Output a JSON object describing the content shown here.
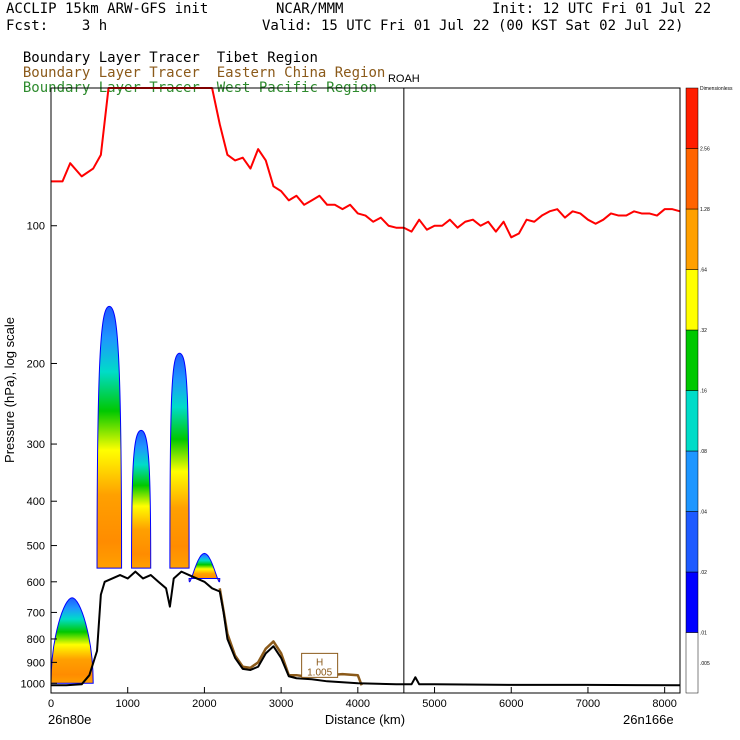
{
  "header": {
    "model": "ACCLIP 15km ARW-GFS init",
    "org": "NCAR/MMM",
    "init": "Init: 12 UTC Fri 01 Jul 22",
    "fcst": "Fcst:    3 h",
    "valid": "Valid: 15 UTC Fri 01 Jul 22 (00 KST Sat 02 Jul 22)"
  },
  "legend_lines": [
    {
      "name": "Boundary Layer Tracer",
      "region": "Tibet Region",
      "color": "#000000"
    },
    {
      "name": "Boundary Layer Tracer",
      "region": "Eastern China Region",
      "color": "#8b5a1a"
    },
    {
      "name": "Boundary Layer Tracer",
      "region": "West Pacific Region",
      "color": "#2e8b2e"
    }
  ],
  "marker": {
    "label": "ROAH",
    "distance_km": 4600
  },
  "hlabel": {
    "letter": "H",
    "value": "1.005"
  },
  "xaxis": {
    "left_label": "26n80e",
    "right_label": "26n166e",
    "label": "Distance (km)"
  },
  "colorbar": {
    "levels": [
      ".005",
      ".01",
      ".02",
      ".04",
      ".08",
      ".16",
      ".32",
      ".64",
      "1.28",
      "2.56",
      "Dimensionless"
    ],
    "colors": [
      "#ffffff",
      "#0000ff",
      "#1e5aff",
      "#1e96ff",
      "#00dcc8",
      "#00c800",
      "#ffff00",
      "#ffa000",
      "#ff6400",
      "#ff1e00"
    ]
  },
  "chart_data": {
    "type": "area",
    "title": "",
    "xlabel": "Distance (km)",
    "ylabel": "Pressure (hPa), log scale",
    "xlim": [
      0,
      8200
    ],
    "ylim": [
      1050,
      50
    ],
    "yscale": "log",
    "xticks": [
      0,
      1000,
      2000,
      3000,
      4000,
      5000,
      6000,
      7000,
      8000
    ],
    "yticks": [
      100,
      200,
      300,
      400,
      500,
      600,
      700,
      800,
      900,
      1000
    ],
    "tropopause_line": {
      "color": "#ff0000",
      "x": [
        0,
        150,
        250,
        400,
        550,
        650,
        750,
        900,
        1100,
        1300,
        1500,
        1600,
        1700,
        1800,
        1900,
        2000,
        2100,
        2200,
        2300,
        2400,
        2500,
        2600,
        2700,
        2800,
        2900,
        3000,
        3100,
        3200,
        3300,
        3400,
        3500,
        3600,
        3700,
        3800,
        3900,
        4000,
        4100,
        4200,
        4300,
        4400,
        4500,
        4600,
        4700,
        4800,
        4900,
        5000,
        5100,
        5200,
        5300,
        5400,
        5500,
        5600,
        5700,
        5800,
        5900,
        6000,
        6100,
        6200,
        6300,
        6400,
        6500,
        6600,
        6700,
        6800,
        6900,
        7000,
        7100,
        7200,
        7300,
        7400,
        7500,
        7600,
        7700,
        7800,
        7900,
        8000,
        8100,
        8200
      ],
      "y": [
        80,
        80,
        73,
        78,
        75,
        70,
        50,
        50,
        50,
        50,
        50,
        50,
        50,
        50,
        50,
        50,
        50,
        60,
        70,
        72,
        71,
        75,
        68,
        72,
        82,
        84,
        88,
        86,
        90,
        88,
        86,
        90,
        90,
        92,
        90,
        94,
        95,
        98,
        96,
        100,
        101,
        101,
        103,
        97,
        102,
        100,
        100,
        97,
        101,
        98,
        97,
        100,
        98,
        103,
        98,
        106,
        104,
        97,
        98,
        95,
        93,
        92,
        96,
        93,
        94,
        97,
        99,
        97,
        94,
        95,
        95,
        93,
        94,
        94,
        95,
        92,
        92,
        93
      ]
    },
    "terrain_line": {
      "color": "#000000",
      "x": [
        0,
        200,
        400,
        500,
        600,
        650,
        700,
        800,
        900,
        1000,
        1100,
        1200,
        1300,
        1400,
        1500,
        1550,
        1600,
        1700,
        1800,
        1900,
        2000,
        2100,
        2200,
        2250,
        2300,
        2400,
        2500,
        2600,
        2700,
        2800,
        2900,
        3000,
        3100,
        3200,
        3400,
        3600,
        4000,
        4500,
        4700,
        4750,
        4800,
        5000,
        6000,
        7000,
        8200
      ],
      "y": [
        1010,
        1010,
        1005,
        960,
        850,
        640,
        600,
        590,
        580,
        590,
        570,
        590,
        580,
        600,
        620,
        680,
        590,
        570,
        580,
        590,
        600,
        620,
        630,
        700,
        800,
        880,
        930,
        935,
        920,
        860,
        830,
        880,
        965,
        975,
        980,
        990,
        1000,
        1005,
        1005,
        970,
        1005,
        1005,
        1008,
        1008,
        1010
      ]
    },
    "eastern_china_line": {
      "color": "#8b5a1a",
      "x": [
        2200,
        2300,
        2400,
        2500,
        2600,
        2700,
        2800,
        2900,
        3000,
        3100,
        3200,
        3300,
        3400,
        3600,
        3800,
        4000,
        4050
      ],
      "y": [
        620,
        780,
        870,
        920,
        925,
        900,
        840,
        810,
        860,
        960,
        960,
        965,
        960,
        960,
        955,
        960,
        1010
      ]
    },
    "tracer_plumes": [
      {
        "name": "Tibet Region",
        "x_range": [
          0,
          550
        ],
        "base_hPa": 1000,
        "top_hPa": 650
      },
      {
        "name": "Tibet Region",
        "x_range": [
          600,
          920
        ],
        "base_hPa": 560,
        "top_hPa": 150
      },
      {
        "name": "Tibet Region",
        "x_range": [
          1050,
          1300
        ],
        "base_hPa": 560,
        "top_hPa": 280
      },
      {
        "name": "Tibet Region",
        "x_range": [
          1550,
          1800
        ],
        "base_hPa": 560,
        "top_hPa": 190
      },
      {
        "name": "Tibet Region",
        "x_range": [
          1800,
          2200
        ],
        "base_hPa": 590,
        "top_hPa": 520
      }
    ]
  }
}
